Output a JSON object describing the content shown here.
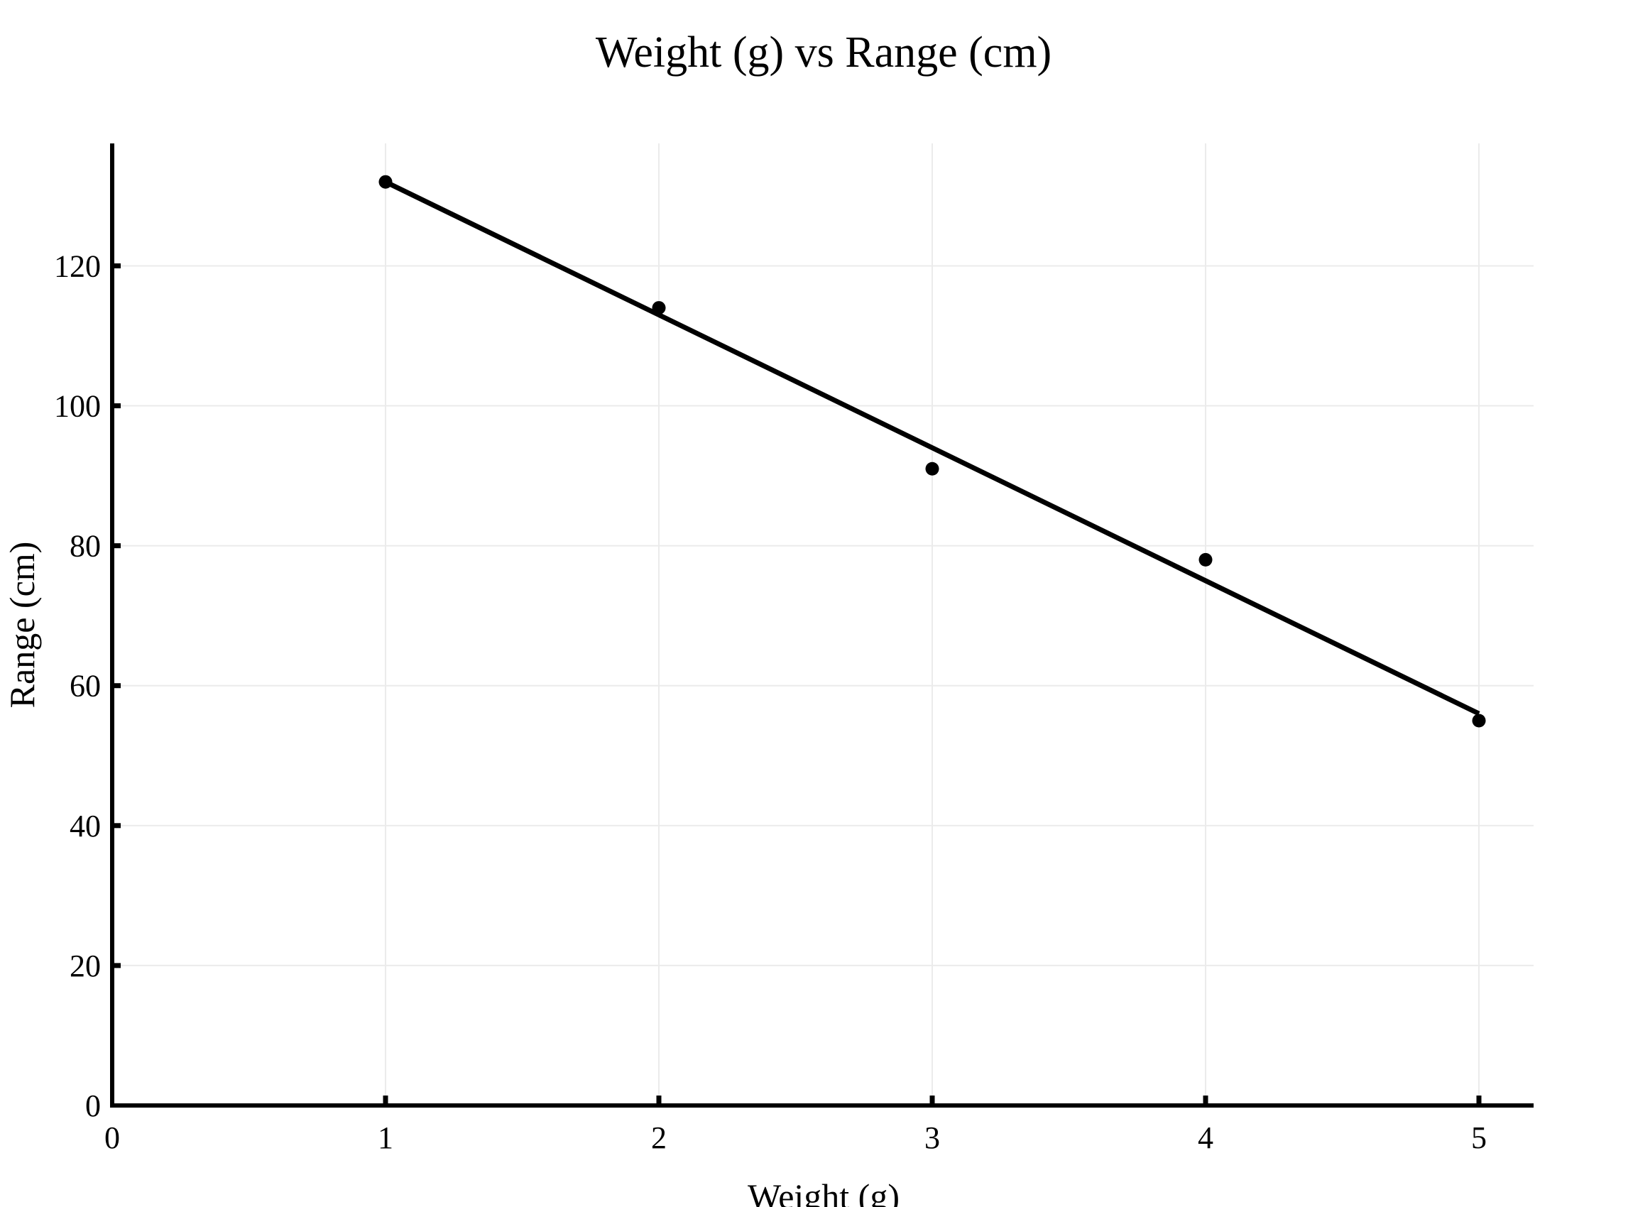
{
  "chart_data": {
    "type": "scatter",
    "title": "Weight (g) vs Range (cm)",
    "xlabel": "Weight (g)",
    "ylabel": "Range (cm)",
    "xlim": [
      0,
      5.2
    ],
    "ylim": [
      0,
      137.5
    ],
    "x_ticks": [
      0,
      1,
      2,
      3,
      4,
      5
    ],
    "y_ticks": [
      0,
      20,
      40,
      60,
      80,
      100,
      120
    ],
    "grid": true,
    "colors": {
      "points": "#000000",
      "fit_line": "#000000",
      "grid": "#ebebeb",
      "axis": "#000000"
    },
    "series": [
      {
        "values": [
          {
            "x": 1,
            "y": 132
          },
          {
            "x": 2,
            "y": 114
          },
          {
            "x": 3,
            "y": 91
          },
          {
            "x": 4,
            "y": 78
          },
          {
            "x": 5,
            "y": 55
          }
        ]
      }
    ],
    "fit_line": {
      "x": [
        1,
        5
      ],
      "y": [
        132,
        56
      ]
    }
  }
}
